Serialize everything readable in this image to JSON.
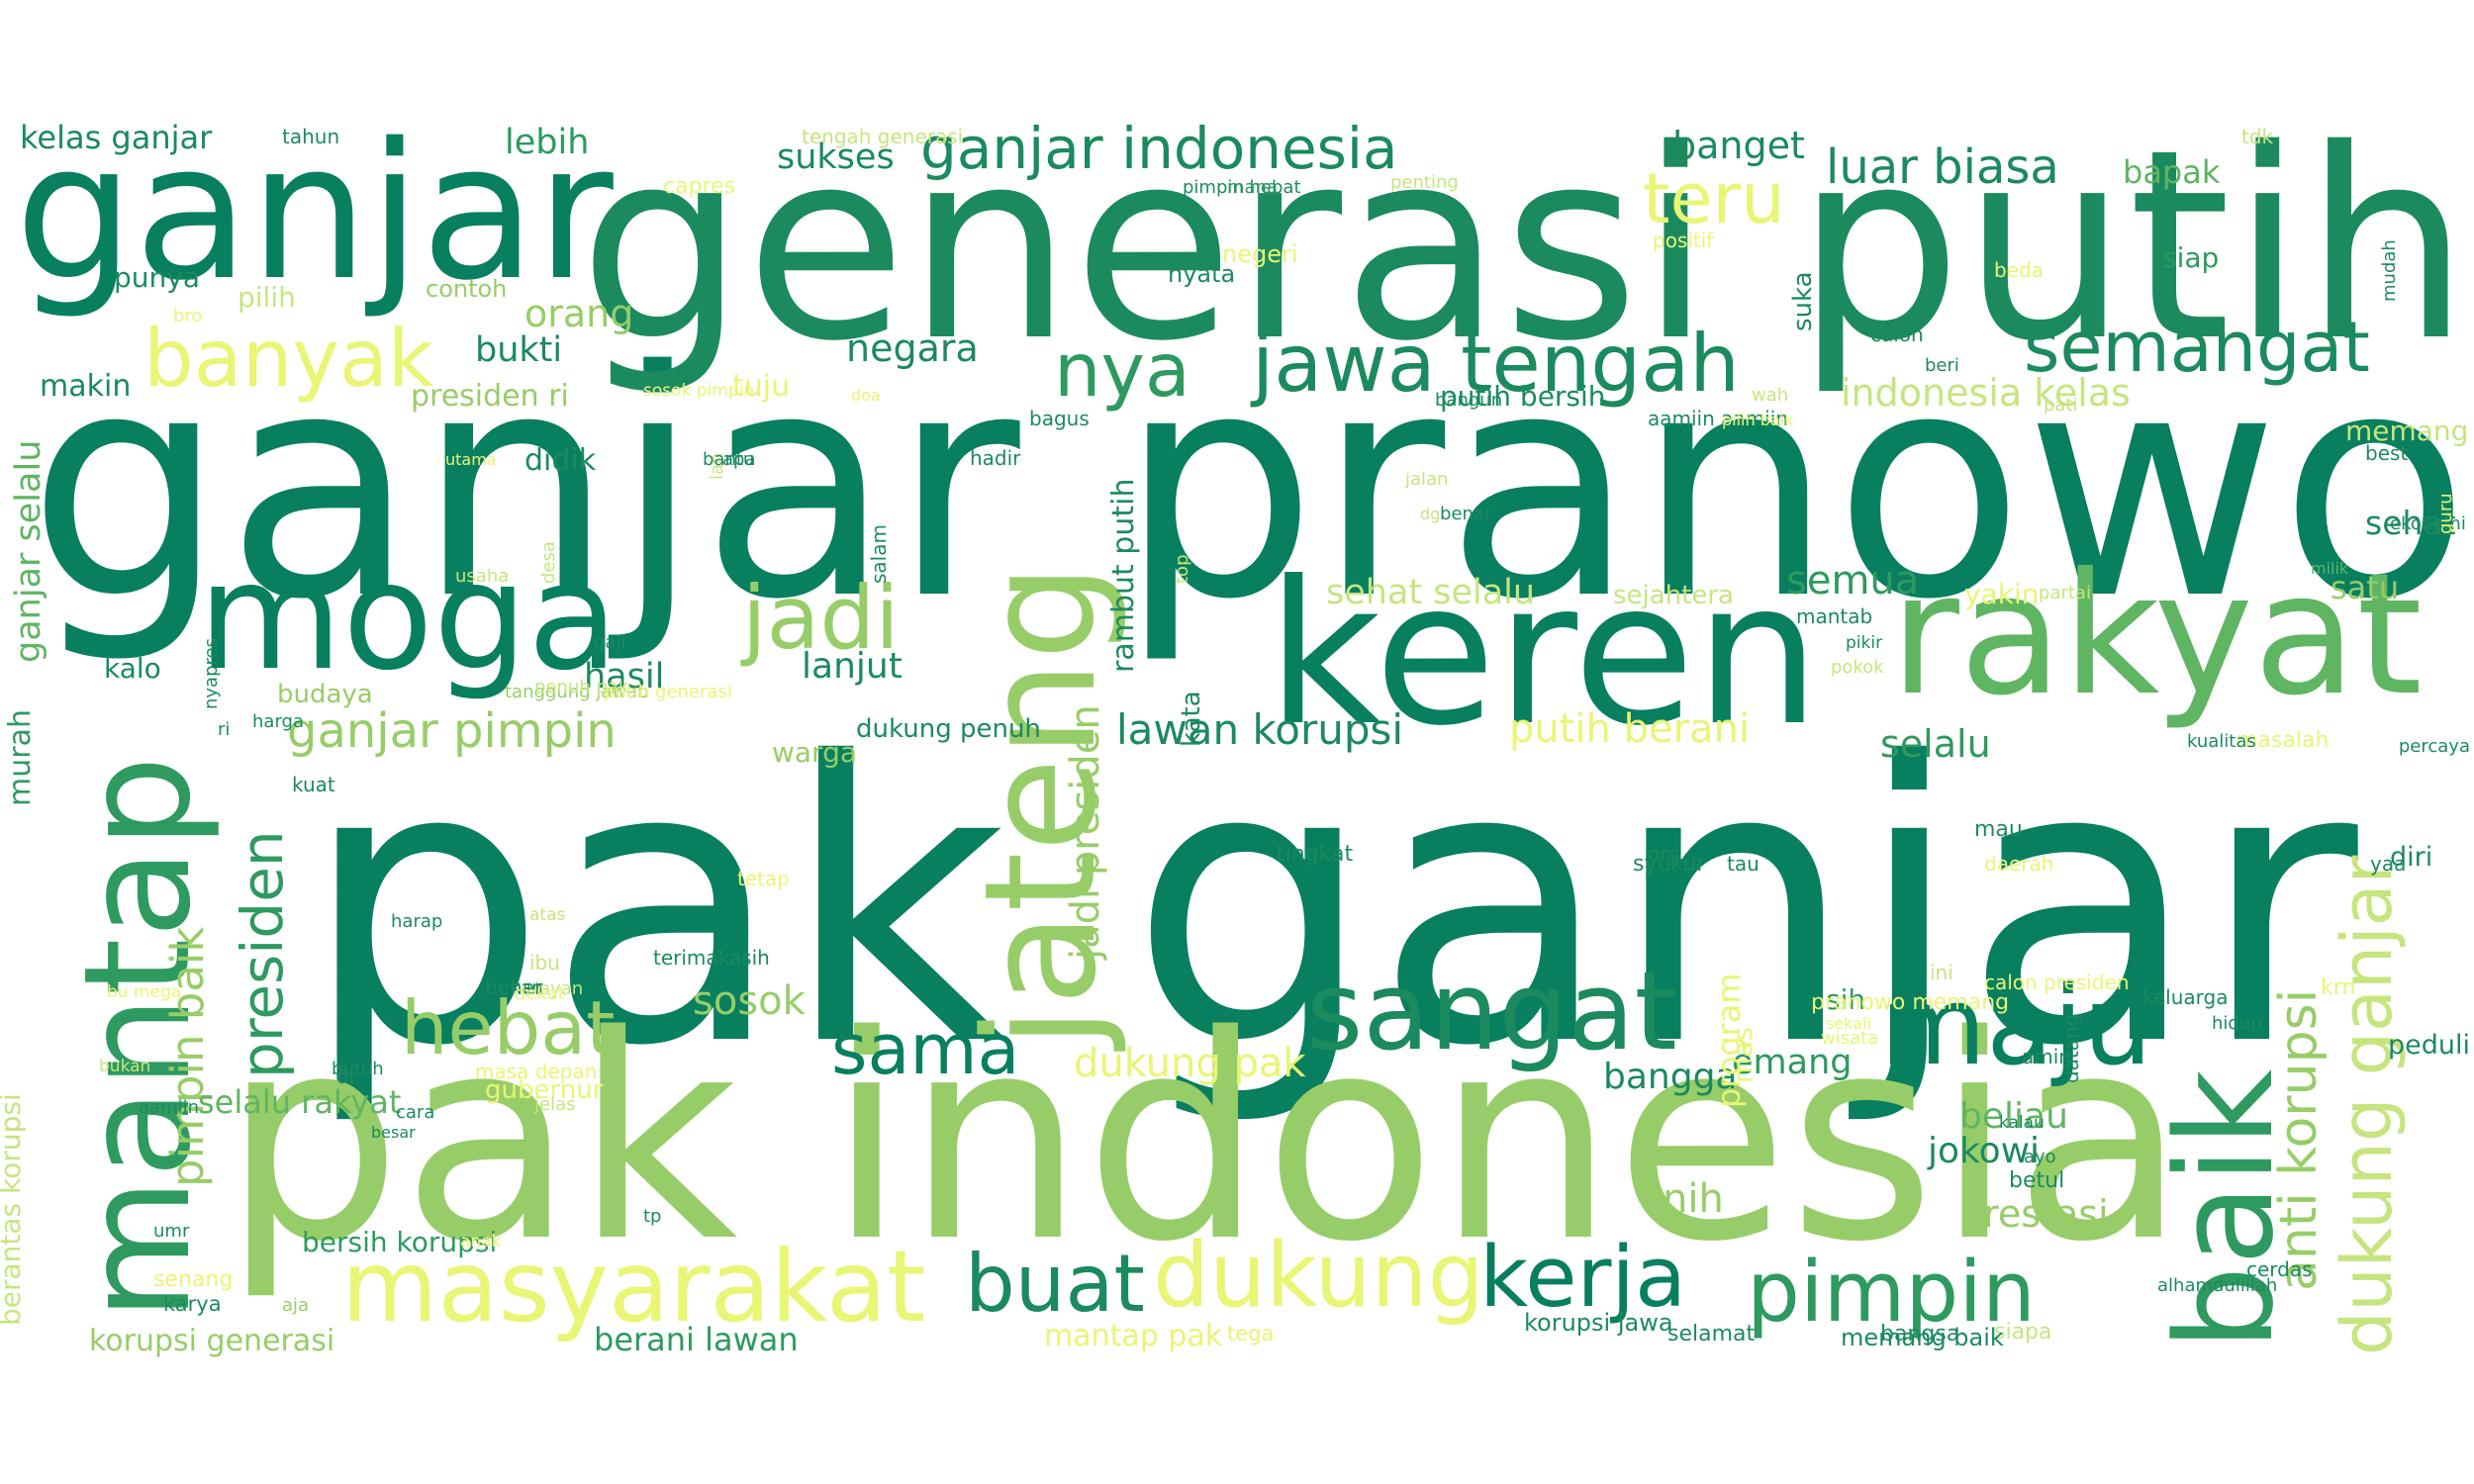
{
  "palette": {
    "dark": "#087f5f",
    "teal": "#1b8a5f",
    "green": "#2e9a5f",
    "mid": "#5fb562",
    "light": "#97cd68",
    "yellowgreen": "#c6e57e",
    "yellow": "#e9f574"
  },
  "words": [
    {
      "text": "pak ganjar",
      "color": "dark"
    },
    {
      "text": "ganjar pranowo",
      "color": "dark"
    },
    {
      "text": "generasi putih",
      "color": "teal"
    },
    {
      "text": "pak indonesia",
      "color": "light"
    },
    {
      "text": "ganjar",
      "color": "dark"
    },
    {
      "text": "keren",
      "color": "dark"
    },
    {
      "text": "rakyat",
      "color": "mid"
    },
    {
      "text": "moga",
      "color": "dark"
    },
    {
      "text": "jateng",
      "color": "light"
    },
    {
      "text": "mantap",
      "color": "green"
    },
    {
      "text": "baik",
      "color": "green"
    },
    {
      "text": "sangat",
      "color": "teal"
    },
    {
      "text": "maju",
      "color": "dark"
    },
    {
      "text": "masyarakat",
      "color": "yellow"
    },
    {
      "text": "dukung",
      "color": "yellow"
    },
    {
      "text": "kerja",
      "color": "dark"
    },
    {
      "text": "pimpin",
      "color": "green"
    },
    {
      "text": "buat",
      "color": "teal"
    },
    {
      "text": "jawa tengah",
      "color": "teal"
    },
    {
      "text": "semangat",
      "color": "teal"
    },
    {
      "text": "banyak",
      "color": "yellow"
    },
    {
      "text": "nya",
      "color": "green"
    },
    {
      "text": "teru",
      "color": "yellow"
    },
    {
      "text": "jadi",
      "color": "light"
    },
    {
      "text": "hebat",
      "color": "light"
    },
    {
      "text": "sama",
      "color": "dark"
    },
    {
      "text": "ganjar indonesia",
      "color": "teal"
    },
    {
      "text": "dukung ganjar",
      "color": "yellowgreen"
    },
    {
      "text": "presiden",
      "color": "green"
    },
    {
      "text": "anti korupsi",
      "color": "light"
    },
    {
      "text": "luar biasa",
      "color": "teal"
    },
    {
      "text": "ganjar pimpin",
      "color": "light"
    },
    {
      "text": "lawan korupsi",
      "color": "teal"
    },
    {
      "text": "putih berani",
      "color": "yellow"
    },
    {
      "text": "pimpin baik",
      "color": "light"
    },
    {
      "text": "jadi presiden",
      "color": "light"
    },
    {
      "text": "dukung pak",
      "color": "yellow"
    },
    {
      "text": "sosok",
      "color": "light"
    },
    {
      "text": "prestasi",
      "color": "light"
    },
    {
      "text": "negara",
      "color": "teal"
    },
    {
      "text": "kelas ganjar",
      "color": "teal"
    },
    {
      "text": "sukses",
      "color": "teal"
    },
    {
      "text": "lebih",
      "color": "green"
    },
    {
      "text": "banget",
      "color": "teal"
    },
    {
      "text": "bapak",
      "color": "mid"
    },
    {
      "text": "orang",
      "color": "light"
    },
    {
      "text": "bukti",
      "color": "teal"
    },
    {
      "text": "semua",
      "color": "green"
    },
    {
      "text": "selalu",
      "color": "green"
    },
    {
      "text": "beliau",
      "color": "mid"
    },
    {
      "text": "jokowi",
      "color": "teal"
    },
    {
      "text": "nih",
      "color": "light"
    },
    {
      "text": "bangga",
      "color": "teal"
    },
    {
      "text": "emang",
      "color": "green"
    },
    {
      "text": "lanjut",
      "color": "teal"
    },
    {
      "text": "hasil",
      "color": "teal"
    },
    {
      "text": "indonesia kelas",
      "color": "yellowgreen"
    },
    {
      "text": "sehat selalu",
      "color": "yellowgreen"
    },
    {
      "text": "ganjar selalu",
      "color": "mid"
    },
    {
      "text": "rambut putih",
      "color": "teal"
    },
    {
      "text": "selalu rakyat",
      "color": "mid"
    },
    {
      "text": "bersih korupsi",
      "color": "green"
    },
    {
      "text": "korupsi generasi",
      "color": "light"
    },
    {
      "text": "berani lawan",
      "color": "green"
    },
    {
      "text": "mantap pak",
      "color": "yellow"
    },
    {
      "text": "putih bersih",
      "color": "teal"
    },
    {
      "text": "presiden ri",
      "color": "light"
    },
    {
      "text": "punya",
      "color": "teal"
    },
    {
      "text": "pilih",
      "color": "yellowgreen"
    },
    {
      "text": "tuju",
      "color": "yellow"
    },
    {
      "text": "didik",
      "color": "teal"
    },
    {
      "text": "memang",
      "color": "yellowgreen"
    },
    {
      "text": "sehat",
      "color": "teal"
    },
    {
      "text": "satu",
      "color": "light"
    },
    {
      "text": "siap",
      "color": "green"
    },
    {
      "text": "yakin",
      "color": "yellow"
    },
    {
      "text": "sejahtera",
      "color": "yellowgreen"
    },
    {
      "text": "makin",
      "color": "teal"
    },
    {
      "text": "murah",
      "color": "green"
    },
    {
      "text": "berantas korupsi",
      "color": "yellowgreen"
    },
    {
      "text": "kalo",
      "color": "teal"
    },
    {
      "text": "budaya",
      "color": "light"
    },
    {
      "text": "gubernur",
      "color": "yellow"
    },
    {
      "text": "peduli",
      "color": "teal"
    },
    {
      "text": "diri",
      "color": "teal"
    },
    {
      "text": "betul",
      "color": "teal"
    },
    {
      "text": "sih",
      "color": "green"
    },
    {
      "text": "mas",
      "color": "yellow"
    },
    {
      "text": "program",
      "color": "yellow"
    },
    {
      "text": "kata",
      "color": "teal"
    },
    {
      "text": "tingkat",
      "color": "teal"
    },
    {
      "text": "dukung penuh",
      "color": "teal"
    },
    {
      "text": "warga",
      "color": "light"
    },
    {
      "text": "suka",
      "color": "teal"
    },
    {
      "text": "nyata",
      "color": "teal"
    },
    {
      "text": "negeri",
      "color": "yellow"
    },
    {
      "text": "contoh",
      "color": "light"
    },
    {
      "text": "tengah generasi",
      "color": "yellowgreen"
    },
    {
      "text": "capres",
      "color": "yellow"
    },
    {
      "text": "tahun",
      "color": "teal"
    },
    {
      "text": "bro",
      "color": "yellow"
    },
    {
      "text": "pimpin hebat",
      "color": "teal"
    },
    {
      "text": "mana",
      "color": "green"
    },
    {
      "text": "penting",
      "color": "yellowgreen"
    },
    {
      "text": "positif",
      "color": "yellow"
    },
    {
      "text": "tdk",
      "color": "yellowgreen"
    },
    {
      "text": "beda",
      "color": "yellow"
    },
    {
      "text": "mudah",
      "color": "teal"
    },
    {
      "text": "calon",
      "color": "teal"
    },
    {
      "text": "beri",
      "color": "teal"
    },
    {
      "text": "wah",
      "color": "yellowgreen"
    },
    {
      "text": "aamiin aamiin",
      "color": "teal"
    },
    {
      "text": "pati",
      "color": "yellowgreen"
    },
    {
      "text": "best",
      "color": "teal"
    },
    {
      "text": "ekonomi",
      "color": "teal"
    },
    {
      "text": "guru",
      "color": "yellow"
    },
    {
      "text": "milik",
      "color": "mid"
    },
    {
      "text": "partai",
      "color": "yellowgreen"
    },
    {
      "text": "mantab",
      "color": "teal"
    },
    {
      "text": "pikir",
      "color": "teal"
    },
    {
      "text": "pokok",
      "color": "yellowgreen"
    },
    {
      "text": "masalah",
      "color": "yellow"
    },
    {
      "text": "percaya",
      "color": "teal"
    },
    {
      "text": "kualitas",
      "color": "teal"
    },
    {
      "text": "mau",
      "color": "teal"
    },
    {
      "text": "syukur",
      "color": "teal"
    },
    {
      "text": "daerah",
      "color": "yellow"
    },
    {
      "text": "yaa",
      "color": "teal"
    },
    {
      "text": "org",
      "color": "teal"
    },
    {
      "text": "tau",
      "color": "teal"
    },
    {
      "text": "ini",
      "color": "yellowgreen"
    },
    {
      "text": "pranowo memang",
      "color": "yellow"
    },
    {
      "text": "wisata",
      "color": "yellow"
    },
    {
      "text": "sekali",
      "color": "yellow"
    },
    {
      "text": "krn",
      "color": "yellow"
    },
    {
      "text": "hidup",
      "color": "teal"
    },
    {
      "text": "keluarga",
      "color": "teal"
    },
    {
      "text": "kalau",
      "color": "teal"
    },
    {
      "text": "calon presiden",
      "color": "yellow"
    },
    {
      "text": "amin",
      "color": "teal"
    },
    {
      "text": "ayo",
      "color": "teal"
    },
    {
      "text": "alhamdulillah",
      "color": "teal"
    },
    {
      "text": "datang",
      "color": "teal"
    },
    {
      "text": "cerdas",
      "color": "teal"
    },
    {
      "text": "siapa",
      "color": "yellowgreen"
    },
    {
      "text": "bangsa",
      "color": "teal"
    },
    {
      "text": "memang baik",
      "color": "teal"
    },
    {
      "text": "selamat",
      "color": "teal"
    },
    {
      "text": "korupsi jawa",
      "color": "teal"
    },
    {
      "text": "tega",
      "color": "yellow"
    },
    {
      "text": "senang",
      "color": "yellow"
    },
    {
      "text": "karya",
      "color": "teal"
    },
    {
      "text": "umr",
      "color": "teal"
    },
    {
      "text": "cara",
      "color": "teal"
    },
    {
      "text": "jelas",
      "color": "yellowgreen"
    },
    {
      "text": "dr",
      "color": "teal"
    },
    {
      "text": "bukan",
      "color": "yellowgreen"
    },
    {
      "text": "butuh",
      "color": "teal"
    },
    {
      "text": "bu mega",
      "color": "yellow"
    },
    {
      "text": "layan",
      "color": "yellowgreen"
    },
    {
      "text": "bener",
      "color": "teal"
    },
    {
      "text": "kan",
      "color": "teal"
    },
    {
      "text": "ibu",
      "color": "yellowgreen"
    },
    {
      "text": "tp",
      "color": "teal"
    },
    {
      "text": "anak",
      "color": "yellow"
    },
    {
      "text": "dekat",
      "color": "yellow"
    },
    {
      "text": "masa depan",
      "color": "yellow"
    },
    {
      "text": "atas",
      "color": "yellowgreen"
    },
    {
      "text": "aamiin",
      "color": "teal"
    },
    {
      "text": "besar",
      "color": "teal"
    },
    {
      "text": "terimakasih",
      "color": "teal"
    },
    {
      "text": "tetap",
      "color": "yellow"
    },
    {
      "text": "harap",
      "color": "teal"
    },
    {
      "text": "kuat",
      "color": "teal"
    },
    {
      "text": "ri",
      "color": "teal"
    },
    {
      "text": "nyapres",
      "color": "teal"
    },
    {
      "text": "harga",
      "color": "teal"
    },
    {
      "text": "tanggung jawab",
      "color": "light"
    },
    {
      "text": "putih generasi",
      "color": "yellow"
    },
    {
      "text": "gaji",
      "color": "teal"
    },
    {
      "text": "penuh pak",
      "color": "yellowgreen"
    },
    {
      "text": "usaha",
      "color": "yellowgreen"
    },
    {
      "text": "desa",
      "color": "yellowgreen"
    },
    {
      "text": "salam",
      "color": "teal"
    },
    {
      "text": "top",
      "color": "yellowgreen"
    },
    {
      "text": "lah",
      "color": "yellowgreen"
    },
    {
      "text": "utama",
      "color": "yellow"
    },
    {
      "text": "bantu",
      "color": "teal"
    },
    {
      "text": "sosok pimpin",
      "color": "yellow"
    },
    {
      "text": "hadir",
      "color": "teal"
    },
    {
      "text": "bagus",
      "color": "teal"
    },
    {
      "text": "bangun",
      "color": "teal"
    },
    {
      "text": "jalan",
      "color": "yellowgreen"
    },
    {
      "text": "benar",
      "color": "teal"
    },
    {
      "text": "dg",
      "color": "yellowgreen"
    },
    {
      "text": "pilih baik",
      "color": "yellow"
    },
    {
      "text": "apa",
      "color": "teal"
    },
    {
      "text": "aja",
      "color": "light"
    },
    {
      "text": "doa",
      "color": "yellow"
    }
  ]
}
